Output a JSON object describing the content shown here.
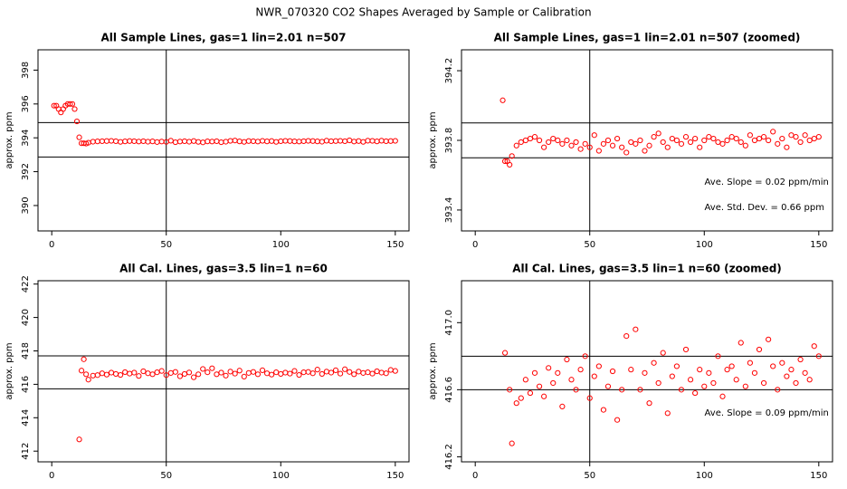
{
  "title": "NWR_070320  CO2 Shapes Averaged by Sample or Calibration",
  "chart_data": [
    {
      "type": "scatter",
      "title": "All Sample Lines, gas=1 lin=2.01 n=507",
      "y_label": "approx. ppm",
      "color": "#ff0000",
      "x": [
        1,
        2,
        3,
        4,
        5,
        6,
        7,
        8,
        9,
        10,
        11,
        12,
        13,
        14,
        15,
        16,
        18,
        20,
        22,
        24,
        26,
        28,
        30,
        32,
        34,
        36,
        38,
        40,
        42,
        44,
        46,
        48,
        50,
        52,
        54,
        56,
        58,
        60,
        62,
        64,
        66,
        68,
        70,
        72,
        74,
        76,
        78,
        80,
        82,
        84,
        86,
        88,
        90,
        92,
        94,
        96,
        98,
        100,
        102,
        104,
        106,
        108,
        110,
        112,
        114,
        116,
        118,
        120,
        122,
        124,
        126,
        128,
        130,
        132,
        134,
        136,
        138,
        140,
        142,
        144,
        146,
        148,
        150
      ],
      "values": [
        395.9,
        395.9,
        395.7,
        395.5,
        395.7,
        395.9,
        396.0,
        396.0,
        396.0,
        395.7,
        394.97,
        394.03,
        393.68,
        393.68,
        393.66,
        393.71,
        393.77,
        393.79,
        393.8,
        393.81,
        393.82,
        393.8,
        393.76,
        393.79,
        393.81,
        393.8,
        393.78,
        393.8,
        393.77,
        393.79,
        393.75,
        393.78,
        393.76,
        393.83,
        393.74,
        393.78,
        393.8,
        393.77,
        393.81,
        393.76,
        393.73,
        393.79,
        393.78,
        393.8,
        393.74,
        393.77,
        393.82,
        393.84,
        393.79,
        393.76,
        393.81,
        393.8,
        393.78,
        393.82,
        393.79,
        393.81,
        393.76,
        393.8,
        393.82,
        393.81,
        393.79,
        393.78,
        393.8,
        393.82,
        393.81,
        393.79,
        393.77,
        393.83,
        393.8,
        393.81,
        393.82,
        393.8,
        393.85,
        393.78,
        393.81,
        393.76,
        393.83,
        393.82,
        393.79,
        393.83,
        393.8,
        393.81,
        393.82
      ],
      "xlim": [
        -6,
        156
      ],
      "ylim": [
        388.5,
        399.2
      ],
      "xticks": [
        0,
        50,
        100,
        150
      ],
      "yticks": [
        390,
        392,
        394,
        396,
        398
      ],
      "hlines": [
        394.9,
        392.87
      ],
      "vlines": [
        50
      ],
      "annotations": []
    },
    {
      "type": "scatter",
      "title": "All Sample Lines, gas=1 lin=2.01 n=507 (zoomed)",
      "y_label": "approx. ppm",
      "color": "#ff0000",
      "x": [
        12,
        13,
        14,
        15,
        16,
        18,
        20,
        22,
        24,
        26,
        28,
        30,
        32,
        34,
        36,
        38,
        40,
        42,
        44,
        46,
        48,
        50,
        52,
        54,
        56,
        58,
        60,
        62,
        64,
        66,
        68,
        70,
        72,
        74,
        76,
        78,
        80,
        82,
        84,
        86,
        88,
        90,
        92,
        94,
        96,
        98,
        100,
        102,
        104,
        106,
        108,
        110,
        112,
        114,
        116,
        118,
        120,
        122,
        124,
        126,
        128,
        130,
        132,
        134,
        136,
        138,
        140,
        142,
        144,
        146,
        148,
        150
      ],
      "values": [
        394.03,
        393.68,
        393.68,
        393.66,
        393.71,
        393.77,
        393.79,
        393.8,
        393.81,
        393.82,
        393.8,
        393.76,
        393.79,
        393.81,
        393.8,
        393.78,
        393.8,
        393.77,
        393.79,
        393.75,
        393.78,
        393.76,
        393.83,
        393.74,
        393.78,
        393.8,
        393.77,
        393.81,
        393.76,
        393.73,
        393.79,
        393.78,
        393.8,
        393.74,
        393.77,
        393.82,
        393.84,
        393.79,
        393.76,
        393.81,
        393.8,
        393.78,
        393.82,
        393.79,
        393.81,
        393.76,
        393.8,
        393.82,
        393.81,
        393.79,
        393.78,
        393.8,
        393.82,
        393.81,
        393.79,
        393.77,
        393.83,
        393.8,
        393.81,
        393.82,
        393.8,
        393.85,
        393.78,
        393.81,
        393.76,
        393.83,
        393.82,
        393.79,
        393.83,
        393.8,
        393.81,
        393.82
      ],
      "xlim": [
        -6,
        156
      ],
      "ylim": [
        393.28,
        394.32
      ],
      "xticks": [
        0,
        50,
        100,
        150
      ],
      "yticks": [
        393.4,
        393.8,
        394.2
      ],
      "hlines": [
        393.9,
        393.7
      ],
      "vlines": [
        50
      ],
      "annotations": [
        "Ave. Slope =  0.02  ppm/min",
        "Ave. Std. Dev. =  0.66  ppm"
      ]
    },
    {
      "type": "scatter",
      "title": "All Cal. Lines, gas=3.5 lin=1 n=60",
      "y_label": "approx. ppm",
      "color": "#ff0000",
      "x": [
        12,
        13,
        14,
        15,
        16,
        18,
        20,
        22,
        24,
        26,
        28,
        30,
        32,
        34,
        36,
        38,
        40,
        42,
        44,
        46,
        48,
        50,
        52,
        54,
        56,
        58,
        60,
        62,
        64,
        66,
        68,
        70,
        72,
        74,
        76,
        78,
        80,
        82,
        84,
        86,
        88,
        90,
        92,
        94,
        96,
        98,
        100,
        102,
        104,
        106,
        108,
        110,
        112,
        114,
        116,
        118,
        120,
        122,
        124,
        126,
        128,
        130,
        132,
        134,
        136,
        138,
        140,
        142,
        144,
        146,
        148,
        150
      ],
      "values": [
        412.7,
        416.82,
        417.5,
        416.6,
        416.28,
        416.52,
        416.55,
        416.66,
        416.58,
        416.7,
        416.62,
        416.56,
        416.73,
        416.64,
        416.7,
        416.5,
        416.78,
        416.66,
        416.6,
        416.72,
        416.8,
        416.55,
        416.68,
        416.74,
        416.48,
        416.62,
        416.71,
        416.42,
        416.6,
        416.92,
        416.72,
        416.96,
        416.6,
        416.7,
        416.52,
        416.76,
        416.64,
        416.82,
        416.46,
        416.68,
        416.74,
        416.6,
        416.84,
        416.66,
        416.58,
        416.72,
        416.62,
        416.7,
        416.64,
        416.8,
        416.56,
        416.72,
        416.74,
        416.66,
        416.88,
        416.62,
        416.76,
        416.7,
        416.84,
        416.64,
        416.9,
        416.74,
        416.6,
        416.76,
        416.68,
        416.72,
        416.64,
        416.78,
        416.7,
        416.66,
        416.86,
        416.8
      ],
      "xlim": [
        -6,
        156
      ],
      "ylim": [
        411.36,
        422.2
      ],
      "xticks": [
        0,
        50,
        100,
        150
      ],
      "yticks": [
        412,
        414,
        416,
        418,
        420,
        422
      ],
      "hlines": [
        417.7,
        415.73
      ],
      "vlines": [
        50
      ],
      "annotations": []
    },
    {
      "type": "scatter",
      "title": "All Cal. Lines, gas=3.5 lin=1 n=60 (zoomed)",
      "y_label": "approx. ppm",
      "color": "#ff0000",
      "x": [
        13,
        15,
        16,
        18,
        20,
        22,
        24,
        26,
        28,
        30,
        32,
        34,
        36,
        38,
        40,
        42,
        44,
        46,
        48,
        50,
        52,
        54,
        56,
        58,
        60,
        62,
        64,
        66,
        68,
        70,
        72,
        74,
        76,
        78,
        80,
        82,
        84,
        86,
        88,
        90,
        92,
        94,
        96,
        98,
        100,
        102,
        104,
        106,
        108,
        110,
        112,
        114,
        116,
        118,
        120,
        122,
        124,
        126,
        128,
        130,
        132,
        134,
        136,
        138,
        140,
        142,
        144,
        146,
        148,
        150
      ],
      "values": [
        416.82,
        416.6,
        416.28,
        416.52,
        416.55,
        416.66,
        416.58,
        416.7,
        416.62,
        416.56,
        416.73,
        416.64,
        416.7,
        416.5,
        416.78,
        416.66,
        416.6,
        416.72,
        416.8,
        416.55,
        416.68,
        416.74,
        416.48,
        416.62,
        416.71,
        416.42,
        416.6,
        416.92,
        416.72,
        416.96,
        416.6,
        416.7,
        416.52,
        416.76,
        416.64,
        416.82,
        416.46,
        416.68,
        416.74,
        416.6,
        416.84,
        416.66,
        416.58,
        416.72,
        416.62,
        416.7,
        416.64,
        416.8,
        416.56,
        416.72,
        416.74,
        416.66,
        416.88,
        416.62,
        416.76,
        416.7,
        416.84,
        416.64,
        416.9,
        416.74,
        416.6,
        416.76,
        416.68,
        416.72,
        416.64,
        416.78,
        416.7,
        416.66,
        416.86,
        416.8
      ],
      "xlim": [
        -6,
        156
      ],
      "ylim": [
        416.17,
        417.25
      ],
      "xticks": [
        0,
        50,
        100,
        150
      ],
      "yticks": [
        416.2,
        416.6,
        {
          "value": 417,
          "label": "417.0"
        }
      ],
      "hlines": [
        416.8,
        416.6
      ],
      "vlines": [
        50
      ],
      "annotations": [
        "Ave. Slope =  0.09  ppm/min"
      ]
    }
  ]
}
